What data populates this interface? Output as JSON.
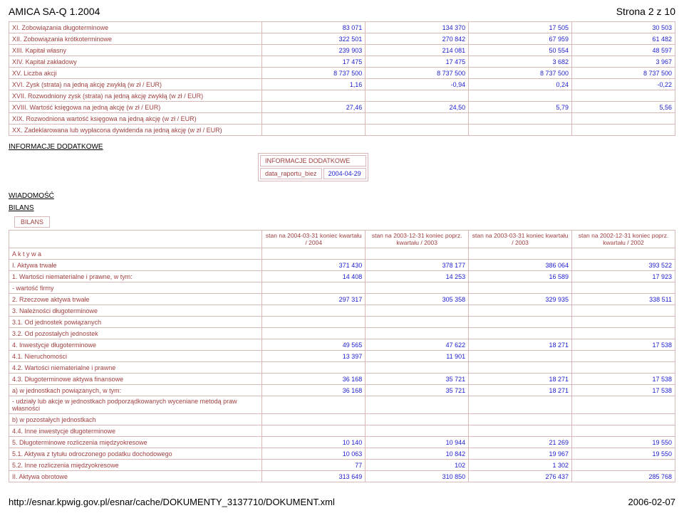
{
  "header": {
    "left": "AMICA SA-Q 1.2004",
    "right": "Strona 2 z 10"
  },
  "footer": {
    "left": "http://esnar.kpwig.gov.pl/esnar/cache/DOKUMENTY_3137710/DOKUMENT.xml",
    "right": "2006-02-07"
  },
  "table1": {
    "rows": [
      {
        "lbl": "XI. Zobowiązania długoterminowe",
        "v": [
          "83 071",
          "134 370",
          "17 505",
          "30 503"
        ]
      },
      {
        "lbl": "XII. Zobowiązania krótkoterminowe",
        "v": [
          "322 501",
          "270 842",
          "67 959",
          "61 482"
        ]
      },
      {
        "lbl": "XIII. Kapitał własny",
        "v": [
          "239 903",
          "214 081",
          "50 554",
          "48 597"
        ]
      },
      {
        "lbl": "XIV. Kapitał zakładowy",
        "v": [
          "17 475",
          "17 475",
          "3 682",
          "3 967"
        ]
      },
      {
        "lbl": "XV. Liczba akcji",
        "v": [
          "8 737 500",
          "8 737 500",
          "8 737 500",
          "8 737 500"
        ]
      },
      {
        "lbl": "XVI. Zysk (strata) na jedną akcję zwykłą (w zł / EUR)",
        "v": [
          "1,16",
          "-0,94",
          "0,24",
          "-0,22"
        ]
      },
      {
        "lbl": "XVII. Rozwodniony zysk (strata) na jedną akcję zwykłą (w zł / EUR)",
        "v": [
          "",
          "",
          "",
          ""
        ]
      },
      {
        "lbl": "XVIII. Wartość księgowa na jedną akcję (w zł / EUR)",
        "v": [
          "27,46",
          "24,50",
          "5,79",
          "5,56"
        ]
      },
      {
        "lbl": "XIX. Rozwodniona wartość księgowa na jedną akcję (w zł / EUR)",
        "v": [
          "",
          "",
          "",
          ""
        ]
      },
      {
        "lbl": "XX. Zadeklarowana lub wypłacona dywidenda na jedną akcję (w zł / EUR)",
        "v": [
          "",
          "",
          "",
          ""
        ]
      }
    ]
  },
  "sections": {
    "info_dodatkowe": "INFORMACJE DODATKOWE",
    "wiadomosc": "WIADOMOŚĆ",
    "bilans": "BILANS",
    "bilans_box": "BILANS"
  },
  "info_box": {
    "title": "INFORMACJE DODATKOWE",
    "data_label": "data_raportu_biez",
    "data_value": "2004-04-29"
  },
  "table2": {
    "headers": [
      "",
      "stan na 2004-03-31 koniec kwartału / 2004",
      "stan na 2003-12-31 koniec poprz. kwartału / 2003",
      "stan na 2003-03-31 koniec kwartału / 2003",
      "stan na 2002-12-31 koniec poprz. kwartału / 2002"
    ],
    "rows": [
      {
        "lbl": "A k t y w a",
        "v": [
          "",
          "",
          "",
          ""
        ]
      },
      {
        "lbl": "I. Aktywa trwałe",
        "v": [
          "371 430",
          "378 177",
          "386 064",
          "393 522"
        ]
      },
      {
        "lbl": "1. Wartości niematerialne i prawne, w tym:",
        "v": [
          "14 408",
          "14 253",
          "16 589",
          "17 923"
        ]
      },
      {
        "lbl": "- wartość firmy",
        "v": [
          "",
          "",
          "",
          ""
        ]
      },
      {
        "lbl": "2. Rzeczowe aktywa trwałe",
        "v": [
          "297 317",
          "305 358",
          "329 935",
          "338 511"
        ]
      },
      {
        "lbl": "3. Należności długoterminowe",
        "v": [
          "",
          "",
          "",
          ""
        ]
      },
      {
        "lbl": "3.1. Od jednostek powiązanych",
        "v": [
          "",
          "",
          "",
          ""
        ]
      },
      {
        "lbl": "3.2. Od pozostałych jednostek",
        "v": [
          "",
          "",
          "",
          ""
        ]
      },
      {
        "lbl": "4. Inwestycje długoterminowe",
        "v": [
          "49 565",
          "47 622",
          "18 271",
          "17 538"
        ]
      },
      {
        "lbl": "4.1. Nieruchomości",
        "v": [
          "13 397",
          "11 901",
          "",
          ""
        ]
      },
      {
        "lbl": "4.2. Wartości niematerialne i prawne",
        "v": [
          "",
          "",
          "",
          ""
        ]
      },
      {
        "lbl": "4.3. Długoterminowe aktywa finansowe",
        "v": [
          "36 168",
          "35 721",
          "18 271",
          "17 538"
        ]
      },
      {
        "lbl": "a) w jednostkach powiązanych, w tym:",
        "v": [
          "36 168",
          "35 721",
          "18 271",
          "17 538"
        ]
      },
      {
        "lbl": "- udziały lub akcje w jednostkach podporządkowanych wyceniane metodą praw własności",
        "v": [
          "",
          "",
          "",
          ""
        ]
      },
      {
        "lbl": "b) w pozostałych jednostkach",
        "v": [
          "",
          "",
          "",
          ""
        ]
      },
      {
        "lbl": "4.4. Inne inwestycje długoterminowe",
        "v": [
          "",
          "",
          "",
          ""
        ]
      },
      {
        "lbl": "5. Długoterminowe rozliczenia międzyokresowe",
        "v": [
          "10 140",
          "10 944",
          "21 269",
          "19 550"
        ]
      },
      {
        "lbl": "5.1. Aktywa z tytułu odroczonego podatku dochodowego",
        "v": [
          "10 063",
          "10 842",
          "19 967",
          "19 550"
        ]
      },
      {
        "lbl": "5.2. Inne rozliczenia międzyokresowe",
        "v": [
          "77",
          "102",
          "1 302",
          ""
        ]
      },
      {
        "lbl": "II. Aktywa obrotowe",
        "v": [
          "313 649",
          "310 850",
          "276 437",
          "285 768"
        ]
      }
    ]
  }
}
